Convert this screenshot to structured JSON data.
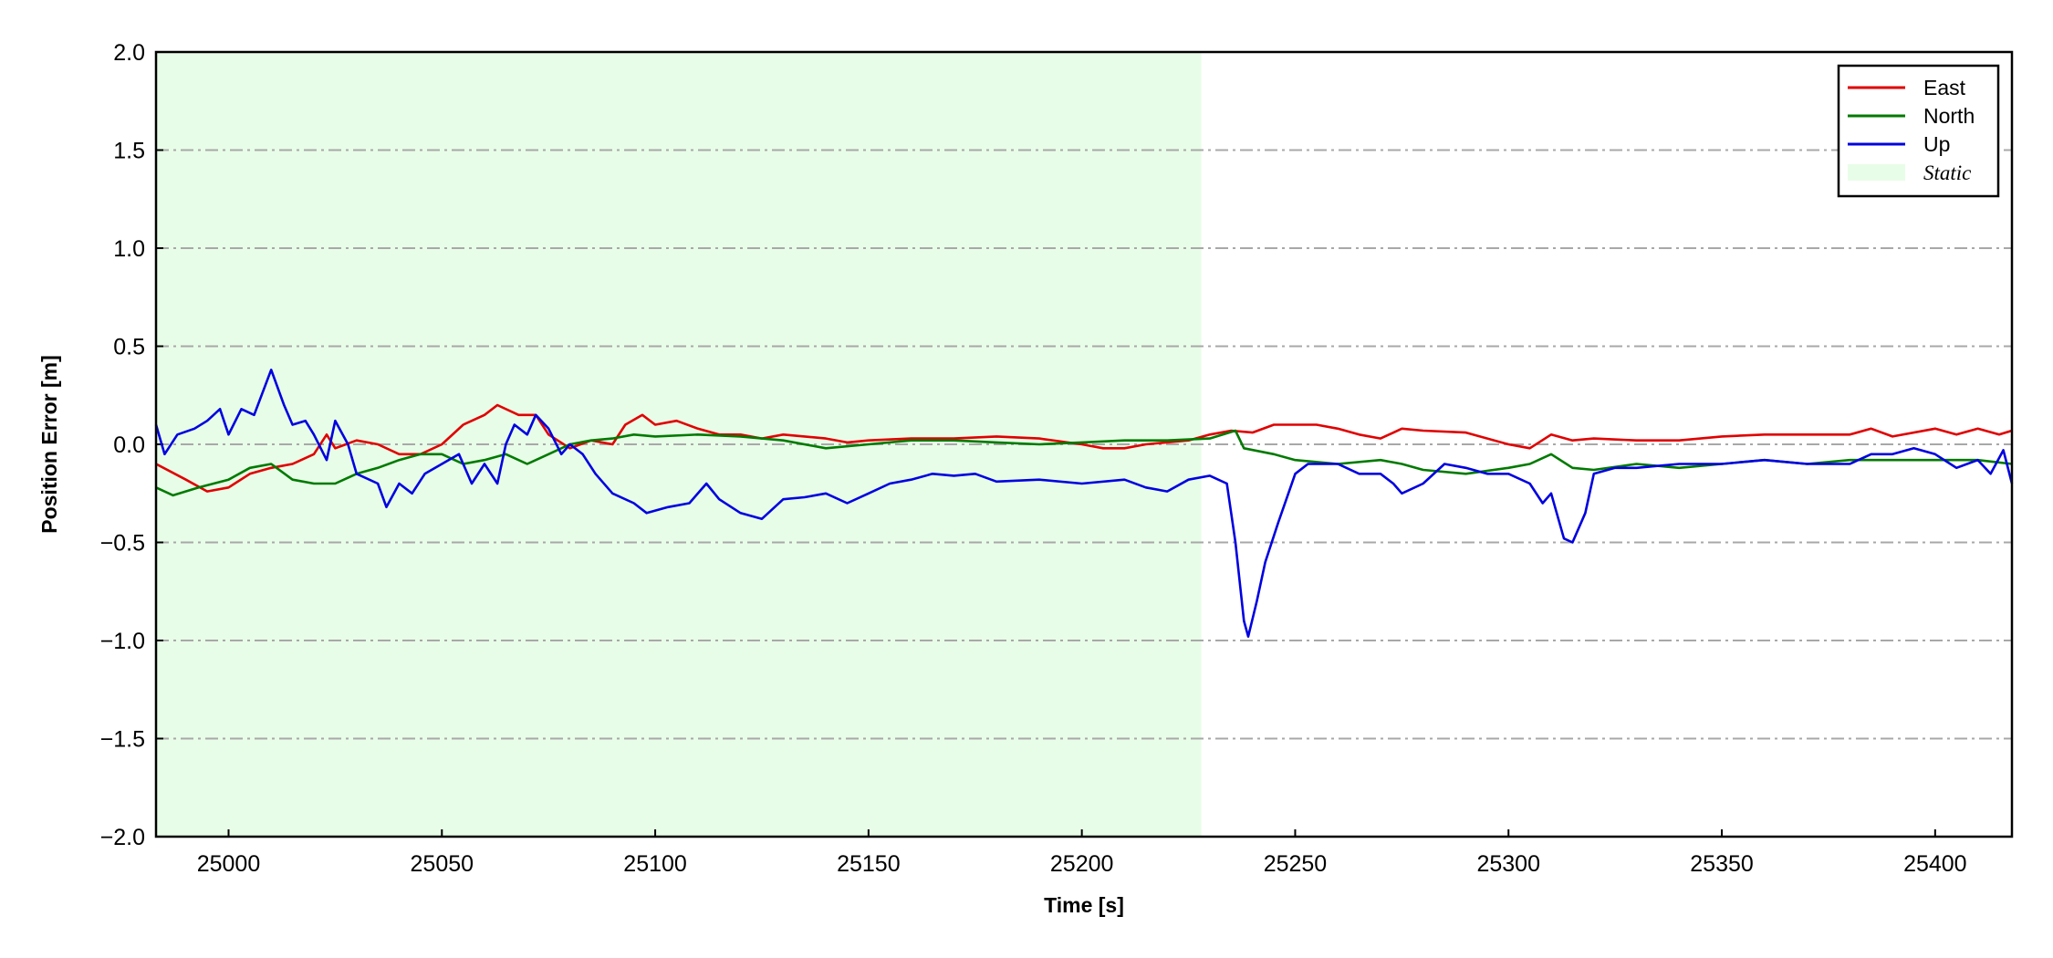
{
  "chart_data": {
    "type": "line",
    "title": "",
    "xlabel": "Time [s]",
    "ylabel": "Position Error [m]",
    "xlim": [
      24983,
      25418
    ],
    "ylim": [
      -2.0,
      2.0
    ],
    "xticks": [
      25000,
      25050,
      25100,
      25150,
      25200,
      25250,
      25300,
      25350,
      25400
    ],
    "yticks": [
      -2.0,
      -1.5,
      -1.0,
      -0.5,
      0.0,
      0.5,
      1.0,
      1.5,
      2.0
    ],
    "ytick_labels": [
      "−2.0",
      "−1.5",
      "−1.0",
      "−0.5",
      "0.0",
      "0.5",
      "1.0",
      "1.5",
      "2.0"
    ],
    "grid": "horizontal dash-dot gray",
    "legend_position": "top-right",
    "shaded_region": {
      "name": "Static",
      "x": [
        24983,
        25228
      ],
      "color": "#e8fde8"
    },
    "series": [
      {
        "name": "East",
        "color": "#e00000",
        "points": [
          [
            24983,
            -0.1
          ],
          [
            24990,
            -0.18
          ],
          [
            24995,
            -0.24
          ],
          [
            25000,
            -0.22
          ],
          [
            25005,
            -0.15
          ],
          [
            25010,
            -0.12
          ],
          [
            25015,
            -0.1
          ],
          [
            25020,
            -0.05
          ],
          [
            25023,
            0.05
          ],
          [
            25025,
            -0.02
          ],
          [
            25030,
            0.02
          ],
          [
            25035,
            0.0
          ],
          [
            25040,
            -0.05
          ],
          [
            25045,
            -0.05
          ],
          [
            25050,
            0.0
          ],
          [
            25055,
            0.1
          ],
          [
            25060,
            0.15
          ],
          [
            25063,
            0.2
          ],
          [
            25068,
            0.15
          ],
          [
            25072,
            0.15
          ],
          [
            25075,
            0.05
          ],
          [
            25080,
            -0.02
          ],
          [
            25085,
            0.02
          ],
          [
            25090,
            0.0
          ],
          [
            25093,
            0.1
          ],
          [
            25097,
            0.15
          ],
          [
            25100,
            0.1
          ],
          [
            25105,
            0.12
          ],
          [
            25110,
            0.08
          ],
          [
            25115,
            0.05
          ],
          [
            25120,
            0.05
          ],
          [
            25125,
            0.03
          ],
          [
            25130,
            0.05
          ],
          [
            25135,
            0.04
          ],
          [
            25140,
            0.03
          ],
          [
            25145,
            0.01
          ],
          [
            25150,
            0.02
          ],
          [
            25160,
            0.03
          ],
          [
            25170,
            0.03
          ],
          [
            25180,
            0.04
          ],
          [
            25190,
            0.03
          ],
          [
            25200,
            0.0
          ],
          [
            25205,
            -0.02
          ],
          [
            25210,
            -0.02
          ],
          [
            25215,
            0.0
          ],
          [
            25225,
            0.02
          ],
          [
            25230,
            0.05
          ],
          [
            25235,
            0.07
          ],
          [
            25240,
            0.06
          ],
          [
            25245,
            0.1
          ],
          [
            25250,
            0.1
          ],
          [
            25255,
            0.1
          ],
          [
            25260,
            0.08
          ],
          [
            25265,
            0.05
          ],
          [
            25270,
            0.03
          ],
          [
            25275,
            0.08
          ],
          [
            25280,
            0.07
          ],
          [
            25290,
            0.06
          ],
          [
            25300,
            0.0
          ],
          [
            25305,
            -0.02
          ],
          [
            25310,
            0.05
          ],
          [
            25315,
            0.02
          ],
          [
            25320,
            0.03
          ],
          [
            25330,
            0.02
          ],
          [
            25340,
            0.02
          ],
          [
            25350,
            0.04
          ],
          [
            25360,
            0.05
          ],
          [
            25370,
            0.05
          ],
          [
            25380,
            0.05
          ],
          [
            25385,
            0.08
          ],
          [
            25390,
            0.04
          ],
          [
            25400,
            0.08
          ],
          [
            25405,
            0.05
          ],
          [
            25410,
            0.08
          ],
          [
            25415,
            0.05
          ],
          [
            25418,
            0.07
          ]
        ]
      },
      {
        "name": "North",
        "color": "#007a00",
        "points": [
          [
            24983,
            -0.22
          ],
          [
            24987,
            -0.26
          ],
          [
            24993,
            -0.22
          ],
          [
            25000,
            -0.18
          ],
          [
            25005,
            -0.12
          ],
          [
            25010,
            -0.1
          ],
          [
            25015,
            -0.18
          ],
          [
            25020,
            -0.2
          ],
          [
            25025,
            -0.2
          ],
          [
            25030,
            -0.15
          ],
          [
            25035,
            -0.12
          ],
          [
            25040,
            -0.08
          ],
          [
            25045,
            -0.05
          ],
          [
            25050,
            -0.05
          ],
          [
            25055,
            -0.1
          ],
          [
            25060,
            -0.08
          ],
          [
            25065,
            -0.05
          ],
          [
            25070,
            -0.1
          ],
          [
            25075,
            -0.05
          ],
          [
            25080,
            0.0
          ],
          [
            25085,
            0.02
          ],
          [
            25090,
            0.03
          ],
          [
            25095,
            0.05
          ],
          [
            25100,
            0.04
          ],
          [
            25110,
            0.05
          ],
          [
            25120,
            0.04
          ],
          [
            25130,
            0.02
          ],
          [
            25140,
            -0.02
          ],
          [
            25150,
            0.0
          ],
          [
            25160,
            0.02
          ],
          [
            25170,
            0.02
          ],
          [
            25180,
            0.01
          ],
          [
            25190,
            0.0
          ],
          [
            25200,
            0.01
          ],
          [
            25210,
            0.02
          ],
          [
            25220,
            0.02
          ],
          [
            25230,
            0.03
          ],
          [
            25236,
            0.07
          ],
          [
            25238,
            -0.02
          ],
          [
            25245,
            -0.05
          ],
          [
            25250,
            -0.08
          ],
          [
            25260,
            -0.1
          ],
          [
            25270,
            -0.08
          ],
          [
            25275,
            -0.1
          ],
          [
            25280,
            -0.13
          ],
          [
            25290,
            -0.15
          ],
          [
            25300,
            -0.12
          ],
          [
            25305,
            -0.1
          ],
          [
            25310,
            -0.05
          ],
          [
            25315,
            -0.12
          ],
          [
            25320,
            -0.13
          ],
          [
            25330,
            -0.1
          ],
          [
            25340,
            -0.12
          ],
          [
            25350,
            -0.1
          ],
          [
            25360,
            -0.08
          ],
          [
            25370,
            -0.1
          ],
          [
            25380,
            -0.08
          ],
          [
            25390,
            -0.08
          ],
          [
            25400,
            -0.08
          ],
          [
            25410,
            -0.08
          ],
          [
            25418,
            -0.1
          ]
        ]
      },
      {
        "name": "Up",
        "color": "#0000e0",
        "points": [
          [
            24983,
            0.1
          ],
          [
            24985,
            -0.05
          ],
          [
            24988,
            0.05
          ],
          [
            24992,
            0.08
          ],
          [
            24995,
            0.12
          ],
          [
            24998,
            0.18
          ],
          [
            25000,
            0.05
          ],
          [
            25003,
            0.18
          ],
          [
            25006,
            0.15
          ],
          [
            25010,
            0.38
          ],
          [
            25013,
            0.2
          ],
          [
            25015,
            0.1
          ],
          [
            25018,
            0.12
          ],
          [
            25020,
            0.05
          ],
          [
            25023,
            -0.08
          ],
          [
            25025,
            0.12
          ],
          [
            25028,
            0.0
          ],
          [
            25030,
            -0.15
          ],
          [
            25035,
            -0.2
          ],
          [
            25037,
            -0.32
          ],
          [
            25040,
            -0.2
          ],
          [
            25043,
            -0.25
          ],
          [
            25046,
            -0.15
          ],
          [
            25050,
            -0.1
          ],
          [
            25054,
            -0.05
          ],
          [
            25057,
            -0.2
          ],
          [
            25060,
            -0.1
          ],
          [
            25063,
            -0.2
          ],
          [
            25065,
            0.0
          ],
          [
            25067,
            0.1
          ],
          [
            25070,
            0.05
          ],
          [
            25072,
            0.15
          ],
          [
            25075,
            0.08
          ],
          [
            25078,
            -0.05
          ],
          [
            25080,
            0.0
          ],
          [
            25083,
            -0.05
          ],
          [
            25086,
            -0.15
          ],
          [
            25090,
            -0.25
          ],
          [
            25095,
            -0.3
          ],
          [
            25098,
            -0.35
          ],
          [
            25103,
            -0.32
          ],
          [
            25108,
            -0.3
          ],
          [
            25112,
            -0.2
          ],
          [
            25115,
            -0.28
          ],
          [
            25120,
            -0.35
          ],
          [
            25125,
            -0.38
          ],
          [
            25130,
            -0.28
          ],
          [
            25135,
            -0.27
          ],
          [
            25140,
            -0.25
          ],
          [
            25145,
            -0.3
          ],
          [
            25150,
            -0.25
          ],
          [
            25155,
            -0.2
          ],
          [
            25160,
            -0.18
          ],
          [
            25165,
            -0.15
          ],
          [
            25170,
            -0.16
          ],
          [
            25175,
            -0.15
          ],
          [
            25180,
            -0.19
          ],
          [
            25190,
            -0.18
          ],
          [
            25200,
            -0.2
          ],
          [
            25210,
            -0.18
          ],
          [
            25215,
            -0.22
          ],
          [
            25220,
            -0.24
          ],
          [
            25225,
            -0.18
          ],
          [
            25230,
            -0.16
          ],
          [
            25234,
            -0.2
          ],
          [
            25236,
            -0.5
          ],
          [
            25238,
            -0.9
          ],
          [
            25239,
            -0.98
          ],
          [
            25241,
            -0.8
          ],
          [
            25243,
            -0.6
          ],
          [
            25246,
            -0.4
          ],
          [
            25250,
            -0.15
          ],
          [
            25253,
            -0.1
          ],
          [
            25260,
            -0.1
          ],
          [
            25265,
            -0.15
          ],
          [
            25270,
            -0.15
          ],
          [
            25273,
            -0.2
          ],
          [
            25275,
            -0.25
          ],
          [
            25280,
            -0.2
          ],
          [
            25285,
            -0.1
          ],
          [
            25290,
            -0.12
          ],
          [
            25295,
            -0.15
          ],
          [
            25300,
            -0.15
          ],
          [
            25305,
            -0.2
          ],
          [
            25308,
            -0.3
          ],
          [
            25310,
            -0.25
          ],
          [
            25313,
            -0.48
          ],
          [
            25315,
            -0.5
          ],
          [
            25318,
            -0.35
          ],
          [
            25320,
            -0.15
          ],
          [
            25325,
            -0.12
          ],
          [
            25330,
            -0.12
          ],
          [
            25340,
            -0.1
          ],
          [
            25350,
            -0.1
          ],
          [
            25360,
            -0.08
          ],
          [
            25370,
            -0.1
          ],
          [
            25380,
            -0.1
          ],
          [
            25385,
            -0.05
          ],
          [
            25390,
            -0.05
          ],
          [
            25395,
            -0.02
          ],
          [
            25400,
            -0.05
          ],
          [
            25405,
            -0.12
          ],
          [
            25410,
            -0.08
          ],
          [
            25413,
            -0.15
          ],
          [
            25416,
            -0.03
          ],
          [
            25418,
            -0.2
          ]
        ]
      }
    ]
  }
}
